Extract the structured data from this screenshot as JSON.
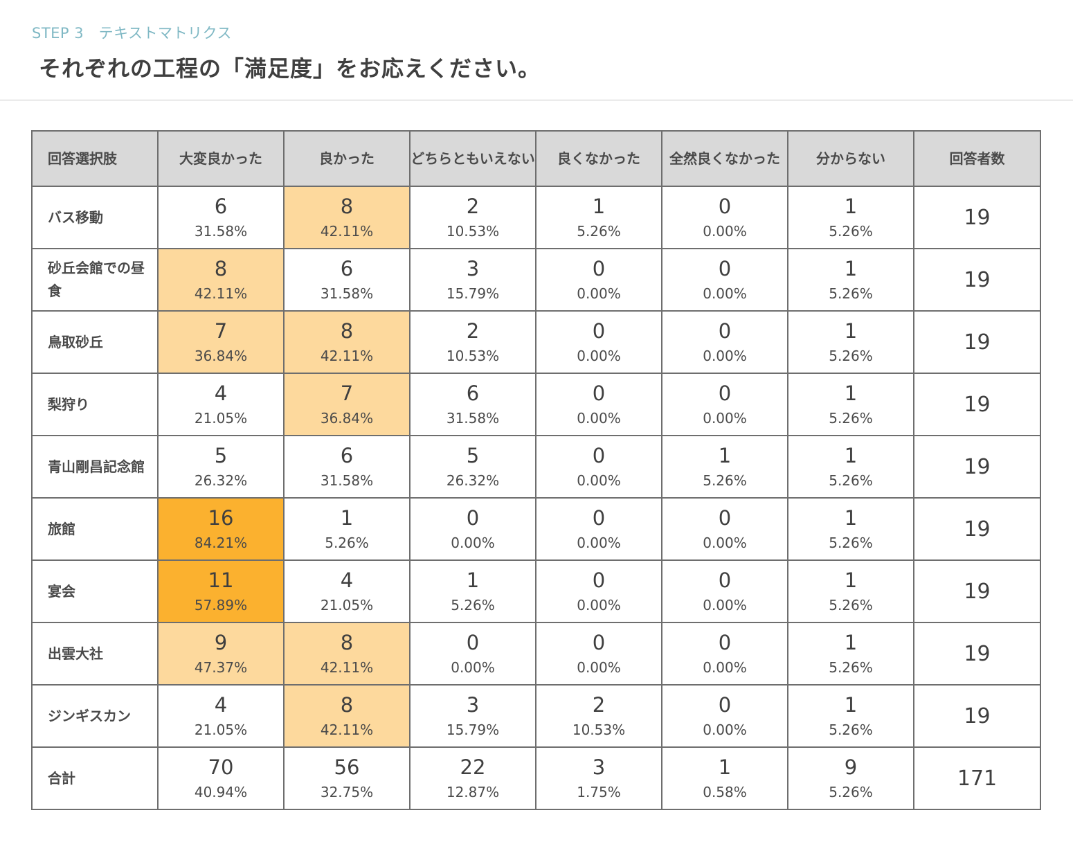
{
  "step": {
    "label": "STEP 3　テキストマトリクス"
  },
  "question": {
    "title": "それぞれの工程の「満足度」をお応えください。"
  },
  "table": {
    "headers": [
      "回答選択肢",
      "大変良かった",
      "良かった",
      "どちらともいえない",
      "良くなかった",
      "全然良くなかった",
      "分からない",
      "回答者数"
    ],
    "rows": [
      {
        "label": "バス移動",
        "cells": [
          {
            "count": "6",
            "pct": "31.58%"
          },
          {
            "count": "8",
            "pct": "42.11%"
          },
          {
            "count": "2",
            "pct": "10.53%"
          },
          {
            "count": "1",
            "pct": "5.26%"
          },
          {
            "count": "0",
            "pct": "0.00%"
          },
          {
            "count": "1",
            "pct": "5.26%"
          }
        ],
        "total": "19"
      },
      {
        "label": "砂丘会館での昼食",
        "cells": [
          {
            "count": "8",
            "pct": "42.11%"
          },
          {
            "count": "6",
            "pct": "31.58%"
          },
          {
            "count": "3",
            "pct": "15.79%"
          },
          {
            "count": "0",
            "pct": "0.00%"
          },
          {
            "count": "0",
            "pct": "0.00%"
          },
          {
            "count": "1",
            "pct": "5.26%"
          }
        ],
        "total": "19"
      },
      {
        "label": "鳥取砂丘",
        "cells": [
          {
            "count": "7",
            "pct": "36.84%"
          },
          {
            "count": "8",
            "pct": "42.11%"
          },
          {
            "count": "2",
            "pct": "10.53%"
          },
          {
            "count": "0",
            "pct": "0.00%"
          },
          {
            "count": "0",
            "pct": "0.00%"
          },
          {
            "count": "1",
            "pct": "5.26%"
          }
        ],
        "total": "19"
      },
      {
        "label": "梨狩り",
        "cells": [
          {
            "count": "4",
            "pct": "21.05%"
          },
          {
            "count": "7",
            "pct": "36.84%"
          },
          {
            "count": "6",
            "pct": "31.58%"
          },
          {
            "count": "0",
            "pct": "0.00%"
          },
          {
            "count": "0",
            "pct": "0.00%"
          },
          {
            "count": "1",
            "pct": "5.26%"
          }
        ],
        "total": "19"
      },
      {
        "label": "青山剛昌記念館",
        "cells": [
          {
            "count": "5",
            "pct": "26.32%"
          },
          {
            "count": "6",
            "pct": "31.58%"
          },
          {
            "count": "5",
            "pct": "26.32%"
          },
          {
            "count": "0",
            "pct": "0.00%"
          },
          {
            "count": "1",
            "pct": "5.26%"
          },
          {
            "count": "1",
            "pct": "5.26%"
          }
        ],
        "total": "19"
      },
      {
        "label": "旅館",
        "cells": [
          {
            "count": "16",
            "pct": "84.21%"
          },
          {
            "count": "1",
            "pct": "5.26%"
          },
          {
            "count": "0",
            "pct": "0.00%"
          },
          {
            "count": "0",
            "pct": "0.00%"
          },
          {
            "count": "0",
            "pct": "0.00%"
          },
          {
            "count": "1",
            "pct": "5.26%"
          }
        ],
        "total": "19"
      },
      {
        "label": "宴会",
        "cells": [
          {
            "count": "11",
            "pct": "57.89%"
          },
          {
            "count": "4",
            "pct": "21.05%"
          },
          {
            "count": "1",
            "pct": "5.26%"
          },
          {
            "count": "0",
            "pct": "0.00%"
          },
          {
            "count": "0",
            "pct": "0.00%"
          },
          {
            "count": "1",
            "pct": "5.26%"
          }
        ],
        "total": "19"
      },
      {
        "label": "出雲大社",
        "cells": [
          {
            "count": "9",
            "pct": "47.37%"
          },
          {
            "count": "8",
            "pct": "42.11%"
          },
          {
            "count": "0",
            "pct": "0.00%"
          },
          {
            "count": "0",
            "pct": "0.00%"
          },
          {
            "count": "0",
            "pct": "0.00%"
          },
          {
            "count": "1",
            "pct": "5.26%"
          }
        ],
        "total": "19"
      },
      {
        "label": "ジンギスカン",
        "cells": [
          {
            "count": "4",
            "pct": "21.05%"
          },
          {
            "count": "8",
            "pct": "42.11%"
          },
          {
            "count": "3",
            "pct": "15.79%"
          },
          {
            "count": "2",
            "pct": "10.53%"
          },
          {
            "count": "0",
            "pct": "0.00%"
          },
          {
            "count": "1",
            "pct": "5.26%"
          }
        ],
        "total": "19"
      },
      {
        "label": "合計",
        "cells": [
          {
            "count": "70",
            "pct": "40.94%"
          },
          {
            "count": "56",
            "pct": "32.75%"
          },
          {
            "count": "22",
            "pct": "12.87%"
          },
          {
            "count": "3",
            "pct": "1.75%"
          },
          {
            "count": "1",
            "pct": "0.58%"
          },
          {
            "count": "9",
            "pct": "5.26%"
          }
        ],
        "total": "171"
      }
    ]
  },
  "colors": {
    "highlight_light": "#fdd99d",
    "highlight_strong": "#fbb12f",
    "header_bg": "#d9d9d9",
    "step_label": "#7fb8c4"
  }
}
